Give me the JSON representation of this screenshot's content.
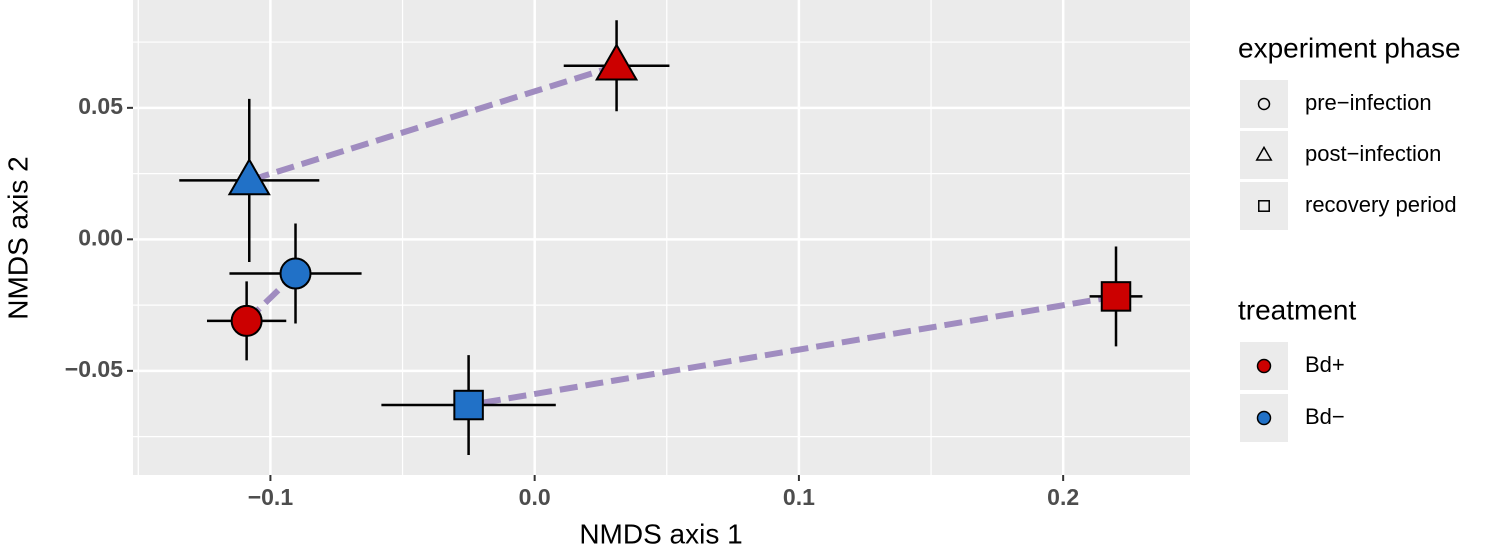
{
  "chart_data": {
    "type": "scatter",
    "x_label": "NMDS axis 1",
    "y_label": "NMDS axis 2",
    "xlim": [
      -0.152,
      0.248
    ],
    "xticks": [
      {
        "value": -0.1,
        "label": "−0.1"
      },
      {
        "value": 0,
        "label": "0.0"
      },
      0.1,
      0.2
    ],
    "ylim": [
      -0.0896,
      0.091
    ],
    "yticks": [
      {
        "value": -0.05,
        "label": "−0.05"
      },
      {
        "value": 0,
        "label": "0.00"
      },
      0.05
    ],
    "grid": true,
    "minor_grid": true,
    "connect_color": "#a08cc0",
    "shape_legend": {
      "title": "experiment phase",
      "labels": [
        "pre−infection",
        "post−infection",
        "recovery period"
      ],
      "shapes": [
        "circle",
        "triangle",
        "square"
      ]
    },
    "color_legend_title": "treatment",
    "series": [
      {
        "name": "Bd+",
        "color": "#cc0000",
        "x": [
          -0.109,
          0.031,
          0.22
        ],
        "values": [
          -0.031,
          0.066,
          -0.0217
        ],
        "xerr": [
          0.015,
          0.02,
          0.01
        ],
        "yerr": [
          0.015,
          0.0173,
          0.019
        ]
      },
      {
        "name": "Bd−",
        "color": "#2171c7",
        "x": [
          -0.0905,
          -0.108,
          -0.025
        ],
        "values": [
          -0.013,
          0.0224,
          -0.063
        ],
        "xerr": [
          0.025,
          0.0265,
          0.033
        ],
        "yerr": [
          0.019,
          0.031,
          0.019
        ]
      }
    ]
  }
}
